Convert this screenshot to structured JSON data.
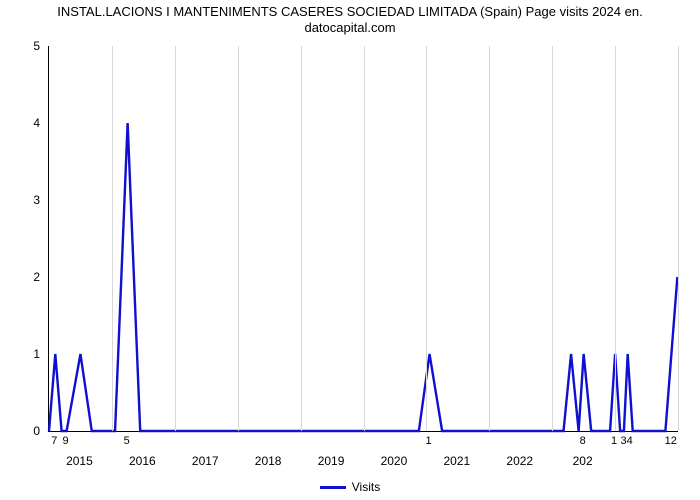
{
  "chart": {
    "type": "line",
    "title_line1": "INSTAL.LACIONS I MANTENIMENTS CASERES SOCIEDAD LIMITADA (Spain) Page visits 2024 en.",
    "title_line2": "datocapital.com",
    "title_fontsize": 13,
    "background_color": "#ffffff",
    "grid_color": "#d8d8d8",
    "axis_color": "#000000",
    "line_color": "#1010d0",
    "line_width": 2.4,
    "y": {
      "min": 0,
      "max": 5,
      "ticks": [
        0,
        1,
        2,
        3,
        4,
        5
      ]
    },
    "x": {
      "grid_count": 10,
      "year_labels": [
        "2015",
        "2016",
        "2017",
        "2018",
        "2019",
        "2020",
        "2021",
        "2022",
        "202"
      ]
    },
    "value_labels": [
      {
        "t": 0.01,
        "text": "7"
      },
      {
        "t": 0.028,
        "text": "9"
      },
      {
        "t": 0.125,
        "text": "5"
      },
      {
        "t": 0.605,
        "text": "1"
      },
      {
        "t": 0.85,
        "text": "8"
      },
      {
        "t": 0.9,
        "text": "1"
      },
      {
        "t": 0.92,
        "text": "34"
      },
      {
        "t": 0.99,
        "text": "12"
      }
    ],
    "series": {
      "name": "Visits",
      "points": [
        [
          0.0,
          0.0
        ],
        [
          0.01,
          1.0
        ],
        [
          0.02,
          0.0
        ],
        [
          0.028,
          0.0
        ],
        [
          0.05,
          1.0
        ],
        [
          0.068,
          0.0
        ],
        [
          0.105,
          0.0
        ],
        [
          0.125,
          4.0
        ],
        [
          0.145,
          0.0
        ],
        [
          0.588,
          0.0
        ],
        [
          0.605,
          1.0
        ],
        [
          0.625,
          0.0
        ],
        [
          0.818,
          0.0
        ],
        [
          0.83,
          1.0
        ],
        [
          0.842,
          0.0
        ],
        [
          0.85,
          1.0
        ],
        [
          0.862,
          0.0
        ],
        [
          0.892,
          0.0
        ],
        [
          0.9,
          1.0
        ],
        [
          0.908,
          0.0
        ],
        [
          0.914,
          0.0
        ],
        [
          0.92,
          1.0
        ],
        [
          0.928,
          0.0
        ],
        [
          0.98,
          0.0
        ],
        [
          0.999,
          2.0
        ]
      ]
    },
    "legend_label": "Visits"
  }
}
